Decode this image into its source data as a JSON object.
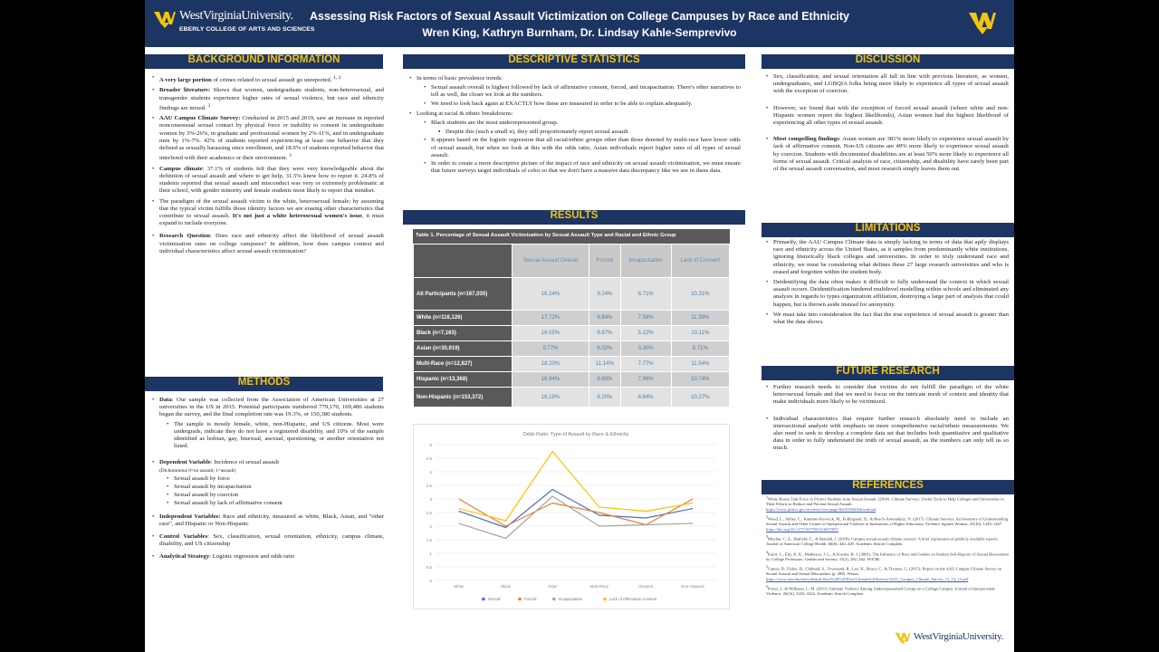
{
  "header": {
    "university": "WestVirginiaUniversity.",
    "college": "EBERLY COLLEGE OF ARTS AND SCIENCES",
    "title": "Assessing Risk Factors of Sexual Assault Victimization on College Campuses by Race and Ethnicity",
    "authors": "Wren King, Kathryn Burnham, Dr. Lindsay Kahle-Semprevivo"
  },
  "background": {
    "heading": "BACKGROUND INFORMATION",
    "b1_bold": "A very large portion",
    "b1_text": " of crimes related to sexual assault go unreported. ",
    "b1_sup": "1, 2",
    "b2_bold": "Broader literature:",
    "b2_text": " Shows that women, undergraduate students, non-heterosexual, and transgender students experience higher rates of sexual violence, but race and ethnicity findings are mixed. ",
    "b2_sup": "3",
    "b3_bold": "AAU Campus Climate Survey:",
    "b3_text": " Conducted in 2015 and 2019, saw an increase in reported nonconsensual sexual contact by physical force or inability to consent in undergraduate women by 3%-26%, in graduate and professional women by 2%-11%, and in undergraduate men by 1%-7%. 42% of students reported experiencing at least one behavior that they defined as sexually harassing since enrollment, and 18.9% of students reported behavior that interfered with their academics or their environment. ",
    "b3_sup": "3",
    "b4_bold": "Campus climate",
    "b4_text": ": 37.1% of students felt that they were very knowledgeable about the definition of sexual assault and where to get help, 31.5% knew how to report it. 24.8% of students reported that sexual assault and misconduct was very or extremely problematic at their school, with gender minority and female students most likely to report that mindset.",
    "b5_text": "The paradigm of the sexual assault victim is the white, heterosexual female; by assuming that the typical victim fulfills those identity factors we are erasing other characteristics that contribute to sexual assault. ",
    "b5_bold": "It's not just a white heterosexual women's issue",
    "b5_text2": ", it must expand to include everyone.",
    "b6_bold": "Research Question",
    "b6_text": ": Does race and ethnicity affect the likelihood of sexual assault victimization rates on college campuses? In addition, how does campus context and individual characteristics affect sexual assault victimization?"
  },
  "methods": {
    "heading": "METHODS",
    "data_bold": "Data",
    "data_text": ": Our sample was collected from the Association of American Universities at 27 universities in the US in 2015. Potential participants numbered 779,170, 169,486 students began the survey, and the final completion rate was 19.3%, or 150,380 students.",
    "sample_text": "The sample is mostly female, white, non-Hispanic, and US citizens. Most were undergrads, indicate they do not have a registered disability, and 10% of the sample identified as lesbian, gay, bisexual, asexual, questioning, or another orientation not listed.",
    "dep_bold": "Dependent Variable",
    "dep_text": ": Incidence of sexual assault",
    "dep_note": "(Dichotomous 0=no assault; 1=assault)",
    "dep_items": [
      "Sexual assault by force",
      "Sexual assault by incapacitation",
      "Sexual assault by coercion",
      "Sexual assault by lack of affirmative consent"
    ],
    "ind_bold": "Independent Variables:",
    "ind_text": " Race and ethnicity, measured as white, Black, Asian, and \"other race\", and Hispanic or Non-Hispanic",
    "ctrl_bold": "Control Variables",
    "ctrl_text": ": Sex, classification, sexual orientation, ethnicity, campus climate, disability, and US citizenship",
    "strat_bold": "Analytical Strategy",
    "strat_text": ": Logistic regression and odds ratio"
  },
  "descriptive": {
    "heading": "DESCRIPTIVE STATISTICS",
    "d1": "In terms of basic prevalence trends:",
    "d1a": "Sexual assault overall is highest followed by lack of affirmative consent, forced, and incapacitation. There's other narratives to tell as well, the closer we look at the numbers.",
    "d1b": "We need to look back again at EXACTLY how these are measured in order to be able to explain adequately.",
    "d2": "Looking at racial & ethnic breakdowns:",
    "d2a": "Black students are the most underrepresented group.",
    "d2a1": "Despite this (such a small n), they still proportionately report sexual assault",
    "d2b": "It appears based on the logistic regression that all racial/ethnic groups other than those denoted by multi-race have lower odds of sexual assault, but when we look at this with the odds ratio, Asian individuals report higher rates of all types of sexual assault.",
    "d2c": "In order to create a more descriptive picture of the impact of race and ethnicity on sexual assault victimization, we must ensure that future surveys target individuals of color so that we don't have a massive data discrepancy like we see in these data."
  },
  "results": {
    "heading": "RESULTS",
    "table_caption": "Table 1. Percentage of Sexual Assault Victimization by Sexual Assault Type and Racial and Ethnic Group",
    "columns": [
      "Sexual Assault Overall",
      "Forced",
      "Incapacitation",
      "Lack of Consent"
    ],
    "rows": [
      {
        "label": "All Participants (n=167,035)",
        "values": [
          "16.24%",
          "9.24%",
          "6.71%",
          "10.31%"
        ]
      },
      {
        "label": "White (n=116,126)",
        "values": [
          "17.72%",
          "9.84%",
          "7.58%",
          "11.39%"
        ]
      },
      {
        "label": "Black (n=7,163)",
        "values": [
          "16.05%",
          "9.87%",
          "5.22%",
          "10.11%"
        ]
      },
      {
        "label": "Asian (n=30,919)",
        "values": [
          "9.77%",
          "6.02%",
          "3.30%",
          "5.71%"
        ]
      },
      {
        "label": "Multi-Race (n=12,827)",
        "values": [
          "18.20%",
          "11.14%",
          "7.77%",
          "11.54%"
        ]
      },
      {
        "label": "Hispanic (n=13,368)",
        "values": [
          "16.94%",
          "9.69%",
          "7.96%",
          "10.74%"
        ]
      },
      {
        "label": "Non-Hispanic (n=153,372)",
        "values": [
          "16.18%",
          "9.20%",
          "6.64%",
          "10.27%"
        ]
      }
    ]
  },
  "chart_data": {
    "type": "line",
    "title": "Odds Ratio: Type of Assault by Race & Ethnicity",
    "categories": [
      "White",
      "Black",
      "Asian",
      "Multi-Race",
      "Hispanic",
      "Non-Hispanic"
    ],
    "ylim": [
      0,
      5
    ],
    "yticks": [
      "0",
      "0.5",
      "1",
      "1.5",
      "2",
      "2.5",
      "3",
      "3.5",
      "4",
      "4.5",
      "5"
    ],
    "grid": true,
    "legend": "bottom",
    "series": [
      {
        "name": "Overall",
        "color": "#4472c4",
        "values": [
          2.55,
          1.95,
          3.35,
          2.4,
          2.3,
          2.65
        ]
      },
      {
        "name": "Forced",
        "color": "#ed7d31",
        "values": [
          3.0,
          2.0,
          2.85,
          2.5,
          2.05,
          3.0
        ]
      },
      {
        "name": "Incapacitation",
        "color": "#a5a5a5",
        "values": [
          2.1,
          1.55,
          3.1,
          2.0,
          2.05,
          2.1
        ]
      },
      {
        "name": "Lack of Affirmative Consent",
        "color": "#ffc000",
        "values": [
          2.65,
          2.2,
          4.75,
          2.7,
          2.55,
          2.85
        ]
      }
    ]
  },
  "discussion": {
    "heading": "DISCUSSION",
    "p1": "Sex, classification, and sexual orientation all fall in line with previous literature, as women, undergraduates, and LGBQIA folks being more likely to experience all types of sexual assault with the exception of coercion.",
    "p2": "However, we found that with the exception of forced sexual assault (where white and non-Hispanic women report the highest likelihoods), Asian women had the highest likelihood of experiencing all other types of sexual assault.",
    "p3_bold": "Most compelling findings",
    "p3_text": ": Asian women are 381% more likely to experience sexual assault by lack of affirmative consent. Non-US citizens are 49% more likely to experience sexual assault by coercion. Students with documented disabilities are at least 50% more likely to experience all forms of sexual assault. Critical analysis of race, citizenship, and disability have rarely been part of the sexual assault conversation, and most research simply leaves them out."
  },
  "limitations": {
    "heading": "LIMITATIONS",
    "l1": "Primarily, the AAU Campus Climate data is simply lacking in terms of data that aptly displays race and ethnicity across the United States, as it samples from predominantly white institutions, ignoring historically black colleges and universities. In order to truly understand race and ethnicity, we must be considering what defines these 27 large research universities and who is erased and forgotten within the student body.",
    "l2": "Deidentifying the data often makes it difficult to fully understand the context in which sexual assault occurs. Deidentification hindered multilevel modelling within schools and eliminated any analysis in regards to types organization affiliation, destroying a large part of analysis that could happen, but is thrown aside instead for anonymity.",
    "l3": "We must take into consideration the fact that the true experience of sexual assault is greater than what the data shows."
  },
  "future": {
    "heading": "FUTURE RESEARCH",
    "f1": "Further research needs to consider that victims do not fulfill the paradigm of the white heterosexual female and that we need to focus on the intricate mesh of context and identity that make individuals more likely to be victimized.",
    "f2": "Individual characteristics that require further research absolutely need to include an intersectional analysis with emphasis on more comprehensive racial/ethnic measurements. We also need to seek to develop a complete data set that includes both quantitative and qualitative data in order to fully understand the truth of sexual assault, as the numbers can only tell us so much."
  },
  "references": {
    "heading": "REFERENCES",
    "r1_text": "White House Task Force to Protect Students from Sexual Assault. (2014). Climate Surveys: Useful Tools to Help Colleges and Universities in Their Efforts to Reduce and Prevent Sexual Assault.",
    "r1_link": "https://www.justice.gov/archives/ovw/page/file/910426/download",
    "r2_text": "Wood, L., Sulley, C., Kammer-Kerwick, M., Follingstad, D., & Busch-Armendariz, N. (2017). Climate Surveys: An Inventory of Understanding Sexual Assault and Other Crimes of Interpersonal Violence at Institutions of Higher Education. Violence Against Women, 23(10), 1249–1267.",
    "r2_link": "https://doi.org/10.1177/1077801216657897",
    "r3_text": "Moylan, C. A., Hatfield, C., & Randall, J. (2018). Campus sexual assault climate surveys: A brief exploration of publicly available reports. Journal of American College Health, 66(6), 445–449. Academic Search Complete.",
    "r4_text": "Kalof, L., Eby, K. K., Matheson, J. L., & Kroska, R. J. (2001). The Influence of Race and Gender on Student Self-Reports of Sexual Harassment by College Professors. Gender and Society, 15(2), 282–302. JSTOR.",
    "r5_text": "Cantor, D., Fisher, B., Chibnall, S., Townsend, R., Lee, H., Bruce, C., & Thomas, G. (2015). Report on the AAU Campus Climate Survey on Sexual Assault and Sexual Misconduct (p. 288). Westat.",
    "r5_link": "https://www.aau.edu/sites/default/files/%40%20Files/Climate%20Survey/AAU_Campus_Climate_Survey_12_14_15.pdf",
    "r6_text": "Porter, J., & Williams, L. M. (2011). Intimate Violence Among Underrepresented Groups on a College Campus. Journal of Interpersonal Violence, 26(16), 3210–3224. Academic Search Complete."
  },
  "footer": {
    "university": "WestVirginiaUniversity."
  }
}
